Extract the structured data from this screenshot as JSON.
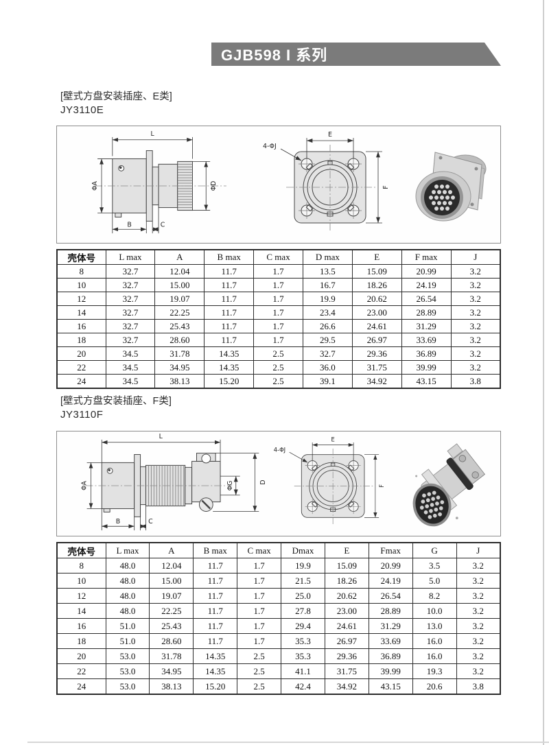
{
  "page": {
    "banner_title": "GJB598 I 系列"
  },
  "sections": [
    {
      "label": "[壁式方盘安装插座、E类]",
      "model": "JY3110E",
      "drawing": {
        "dim_l": "L",
        "dim_phi_a": "ΦA",
        "dim_phi_d": "ΦD",
        "dim_b": "B",
        "dim_c": "C",
        "holes_label": "4-ΦJ",
        "dim_e": "E",
        "dim_f": "F"
      },
      "table": {
        "headers": [
          "壳体号",
          "L max",
          "A",
          "B max",
          "C max",
          "D max",
          "E",
          "F max",
          "J"
        ],
        "rows": [
          [
            "8",
            "32.7",
            "12.04",
            "11.7",
            "1.7",
            "13.5",
            "15.09",
            "20.99",
            "3.2"
          ],
          [
            "10",
            "32.7",
            "15.00",
            "11.7",
            "1.7",
            "16.7",
            "18.26",
            "24.19",
            "3.2"
          ],
          [
            "12",
            "32.7",
            "19.07",
            "11.7",
            "1.7",
            "19.9",
            "20.62",
            "26.54",
            "3.2"
          ],
          [
            "14",
            "32.7",
            "22.25",
            "11.7",
            "1.7",
            "23.4",
            "23.00",
            "28.89",
            "3.2"
          ],
          [
            "16",
            "32.7",
            "25.43",
            "11.7",
            "1.7",
            "26.6",
            "24.61",
            "31.29",
            "3.2"
          ],
          [
            "18",
            "32.7",
            "28.60",
            "11.7",
            "1.7",
            "29.5",
            "26.97",
            "33.69",
            "3.2"
          ],
          [
            "20",
            "34.5",
            "31.78",
            "14.35",
            "2.5",
            "32.7",
            "29.36",
            "36.89",
            "3.2"
          ],
          [
            "22",
            "34.5",
            "34.95",
            "14.35",
            "2.5",
            "36.0",
            "31.75",
            "39.99",
            "3.2"
          ],
          [
            "24",
            "34.5",
            "38.13",
            "15.20",
            "2.5",
            "39.1",
            "34.92",
            "43.15",
            "3.8"
          ]
        ]
      }
    },
    {
      "label": "[壁式方盘安装插座、F类]",
      "model": "JY3110F",
      "drawing": {
        "dim_l": "L",
        "dim_phi_a": "ΦA",
        "dim_phi_g": "ΦG",
        "dim_d": "D",
        "dim_b": "B",
        "dim_c": "C",
        "holes_label": "4-ΦJ",
        "dim_e": "E",
        "dim_f": "F"
      },
      "table": {
        "headers": [
          "壳体号",
          "L max",
          "A",
          "B max",
          "C max",
          "Dmax",
          "E",
          "Fmax",
          "G",
          "J"
        ],
        "rows": [
          [
            "8",
            "48.0",
            "12.04",
            "11.7",
            "1.7",
            "19.9",
            "15.09",
            "20.99",
            "3.5",
            "3.2"
          ],
          [
            "10",
            "48.0",
            "15.00",
            "11.7",
            "1.7",
            "21.5",
            "18.26",
            "24.19",
            "5.0",
            "3.2"
          ],
          [
            "12",
            "48.0",
            "19.07",
            "11.7",
            "1.7",
            "25.0",
            "20.62",
            "26.54",
            "8.2",
            "3.2"
          ],
          [
            "14",
            "48.0",
            "22.25",
            "11.7",
            "1.7",
            "27.8",
            "23.00",
            "28.89",
            "10.0",
            "3.2"
          ],
          [
            "16",
            "51.0",
            "25.43",
            "11.7",
            "1.7",
            "29.4",
            "24.61",
            "31.29",
            "13.0",
            "3.2"
          ],
          [
            "18",
            "51.0",
            "28.60",
            "11.7",
            "1.7",
            "35.3",
            "26.97",
            "33.69",
            "16.0",
            "3.2"
          ],
          [
            "20",
            "53.0",
            "31.78",
            "14.35",
            "2.5",
            "35.3",
            "29.36",
            "36.89",
            "16.0",
            "3.2"
          ],
          [
            "22",
            "53.0",
            "34.95",
            "14.35",
            "2.5",
            "41.1",
            "31.75",
            "39.99",
            "19.3",
            "3.2"
          ],
          [
            "24",
            "53.0",
            "38.13",
            "15.20",
            "2.5",
            "42.4",
            "34.92",
            "43.15",
            "20.6",
            "3.8"
          ]
        ]
      }
    }
  ]
}
